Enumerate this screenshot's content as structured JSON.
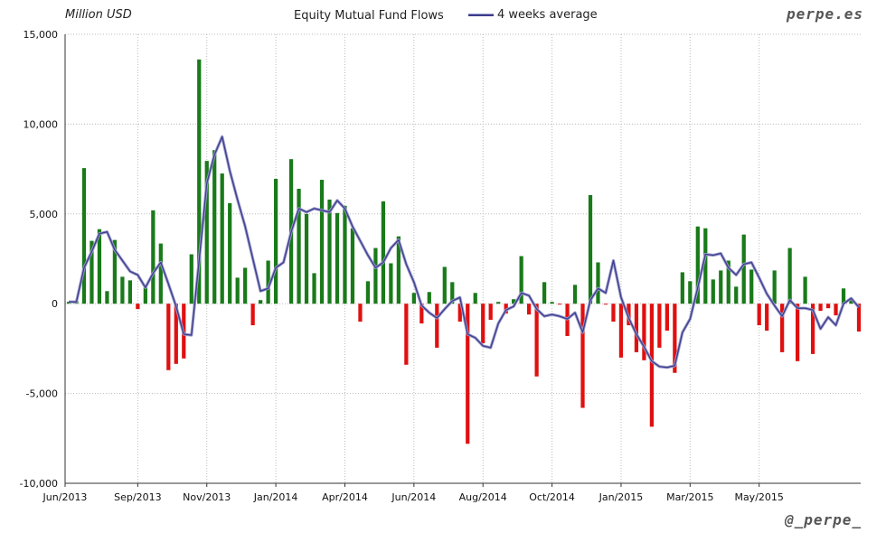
{
  "header": {
    "unit_label": "Million USD",
    "title": "Equity Mutual Fund Flows",
    "legend_label": "4 weeks average",
    "brand": "perpe.es",
    "handle": "@_perpe_"
  },
  "colors": {
    "positive": "#1a7a1a",
    "negative": "#e01010",
    "average": "#3c3c8c",
    "grid": "#bbbbbb"
  },
  "chart_data": {
    "type": "bar",
    "title": "Equity Mutual Fund Flows",
    "ylabel": "Million USD",
    "ylim": [
      -10000,
      15000
    ],
    "yticks": [
      -10000,
      -5000,
      0,
      5000,
      10000,
      15000
    ],
    "ytick_labels": [
      "-10,000",
      "-5,000",
      "0",
      "5,000",
      "10,000",
      "15,000"
    ],
    "xtick_labels": [
      "Jun/2013",
      "Sep/2013",
      "Nov/2013",
      "Jan/2014",
      "Apr/2014",
      "Jun/2014",
      "Aug/2014",
      "Oct/2014",
      "Jan/2015",
      "Mar/2015",
      "May/2015"
    ],
    "xtick_week_index": [
      0,
      9,
      18,
      27,
      36,
      45,
      54,
      63,
      72,
      81,
      90
    ],
    "grid": true,
    "legend_position": "top",
    "series": [
      {
        "type": "bar",
        "values": [
          100,
          150,
          7550,
          3500,
          4150,
          700,
          3550,
          1500,
          1300,
          -300,
          900,
          5200,
          3350,
          -3700,
          -3350,
          -3050,
          2750,
          13600,
          7950,
          8550,
          7250,
          5600,
          1450,
          2000,
          -1200,
          200,
          2400,
          6950,
          0,
          8050,
          6400,
          5000,
          1700,
          6900,
          5800,
          5050,
          5450,
          4200,
          -1000,
          1250,
          3100,
          5700,
          2250,
          3750,
          -3400,
          600,
          -1100,
          650,
          -2450,
          2050,
          1200,
          -1000,
          -7800,
          600,
          -2200,
          -900,
          100,
          -550,
          250,
          2650,
          -600,
          -4050,
          1200,
          100,
          -50,
          -1800,
          1050,
          -5800,
          6050,
          2300,
          -50,
          -1000,
          -3000,
          -1200,
          -2700,
          -3150,
          -6850,
          -2450,
          -1500,
          -3850,
          1750,
          1250,
          4300,
          4200,
          1350,
          1850,
          2400,
          950,
          3850,
          1900,
          -1200,
          -1500,
          1850,
          -2700,
          3100,
          -3200,
          1500,
          -2800,
          -400,
          -250,
          -650,
          850,
          200,
          -1550
        ]
      },
      {
        "name": "4 weeks average",
        "type": "line",
        "values": [
          100,
          100,
          2000,
          2900,
          3900,
          4000,
          3000,
          2400,
          1800,
          1600,
          900,
          1700,
          2300,
          1100,
          -150,
          -1700,
          -1750,
          2400,
          6700,
          8300,
          9300,
          7400,
          5800,
          4300,
          2500,
          700,
          850,
          2000,
          2300,
          4000,
          5300,
          5100,
          5300,
          5200,
          5100,
          5750,
          5300,
          4300,
          3500,
          2700,
          2000,
          2300,
          3100,
          3550,
          2200,
          1200,
          -100,
          -500,
          -800,
          -300,
          150,
          350,
          -1700,
          -1900,
          -2350,
          -2450,
          -1100,
          -350,
          -150,
          600,
          450,
          -300,
          -700,
          -600,
          -700,
          -850,
          -500,
          -1600,
          200,
          850,
          600,
          2400,
          350,
          -800,
          -1700,
          -2400,
          -3200,
          -3500,
          -3550,
          -3450,
          -1600,
          -850,
          900,
          2750,
          2700,
          2800,
          2000,
          1600,
          2200,
          2300,
          1450,
          550,
          -100,
          -700,
          200,
          -250,
          -250,
          -350,
          -1400,
          -750,
          -1200,
          0,
          300,
          -200
        ]
      }
    ]
  }
}
